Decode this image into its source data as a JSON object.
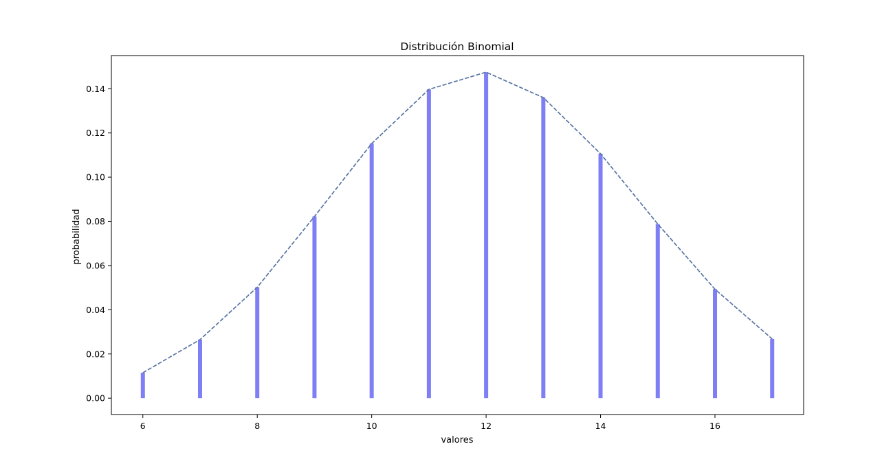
{
  "chart_data": {
    "type": "bar",
    "title": "Distribución Binomial",
    "xlabel": "valores",
    "ylabel": "probabilidad",
    "x": [
      6,
      7,
      8,
      9,
      10,
      11,
      12,
      13,
      14,
      15,
      16,
      17
    ],
    "values": [
      0.0115,
      0.0265,
      0.0502,
      0.0822,
      0.1152,
      0.1397,
      0.1475,
      0.136,
      0.1106,
      0.0788,
      0.0493,
      0.0268
    ],
    "xlim": [
      5.45,
      17.55
    ],
    "ylim": [
      -0.0074,
      0.155
    ],
    "xticks": [
      6,
      8,
      10,
      12,
      14,
      16
    ],
    "xtick_labels": [
      "6",
      "8",
      "10",
      "12",
      "14",
      "16"
    ],
    "yticks": [
      0.0,
      0.02,
      0.04,
      0.06,
      0.08,
      0.1,
      0.12,
      0.14
    ],
    "ytick_labels": [
      "0.00",
      "0.02",
      "0.04",
      "0.06",
      "0.08",
      "0.10",
      "0.12",
      "0.14"
    ],
    "grid": false,
    "legend": "none",
    "bar_color": "#7f7ff5",
    "line_color": "#5875a4",
    "line_style": "dashed"
  }
}
